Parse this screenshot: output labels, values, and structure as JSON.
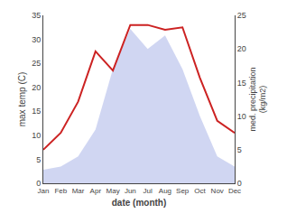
{
  "chart_data": {
    "type": "line",
    "x_label": "date (month)",
    "y_label": "max temp (C)",
    "y2_label": "med. precipitation\n(kg/m2)",
    "categories": [
      "Jan",
      "Feb",
      "Mar",
      "Apr",
      "May",
      "Jun",
      "Jul",
      "Aug",
      "Sep",
      "Oct",
      "Nov",
      "Dec"
    ],
    "series": [
      {
        "type": "line",
        "color": "#cc2222",
        "values": [
          7,
          10.5,
          17,
          27.5,
          23.5,
          33,
          33,
          32,
          32.5,
          22,
          13,
          10.5
        ]
      },
      {
        "type": "area",
        "color": "#aab4e8",
        "axis": "y2",
        "values": [
          2,
          2.5,
          4,
          8,
          17,
          23,
          20,
          22,
          17,
          10,
          4,
          2.5
        ]
      }
    ],
    "ylim": [
      0,
      35
    ],
    "yticks": [
      0,
      5,
      10,
      15,
      20,
      25,
      30,
      35
    ],
    "y2lim": [
      0,
      25
    ],
    "y2ticks": [
      0,
      5,
      10,
      15,
      20,
      25
    ],
    "grid": false,
    "background_color": "#ffffff"
  }
}
